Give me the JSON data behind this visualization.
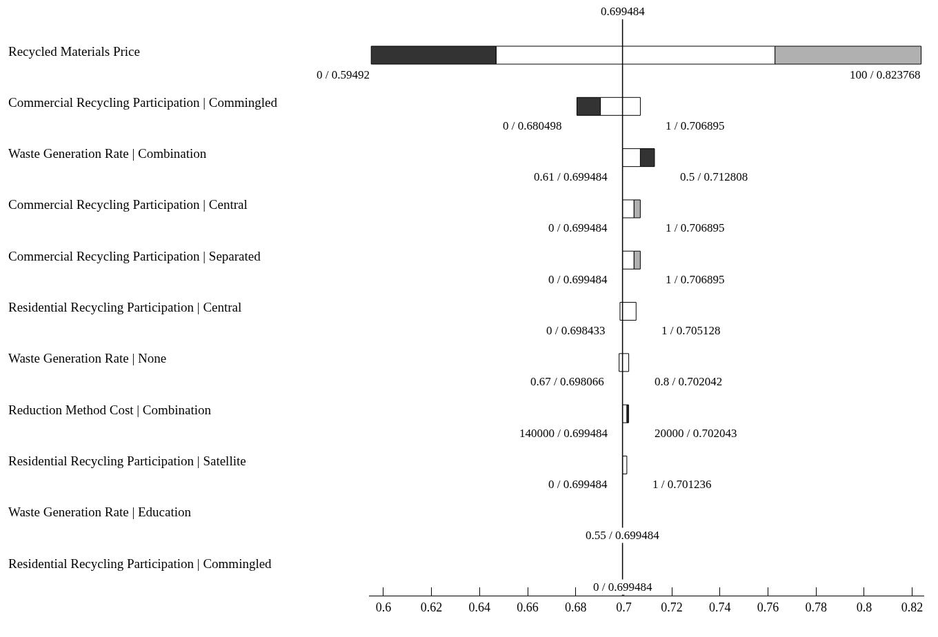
{
  "chart_data": {
    "type": "bar",
    "orientation": "horizontal",
    "categories": [
      "Recycled Materials Price",
      "Commercial Recycling Participation | Commingled",
      "Waste Generation Rate | Combination",
      "Commercial Recycling Participation | Central",
      "Commercial Recycling Participation | Separated",
      "Residential Recycling Participation | Central",
      "Waste Generation Rate | None",
      "Reduction Method Cost | Combination",
      "Residential Recycling Participation | Satellite",
      "Waste Generation Rate | Education",
      "Residential Recycling Participation | Commingled"
    ],
    "series": [
      {
        "color": "#333333",
        "base": [
          0.59492,
          0.680498,
          0.70688,
          null,
          null,
          null,
          null,
          0.7013,
          null,
          null,
          null
        ],
        "values": [
          0.052,
          0.0098,
          0.0059,
          null,
          null,
          null,
          null,
          0.0007,
          null,
          null,
          null
        ]
      },
      {
        "color": "#ffffff",
        "base": [
          0.64692,
          0.6903,
          0.699484,
          0.699484,
          0.699484,
          0.698433,
          0.698066,
          0.699484,
          0.699484,
          null,
          null
        ],
        "values": [
          0.116,
          0.0166,
          0.0074,
          0.0048,
          0.0048,
          0.0067,
          0.004,
          0.0018,
          0.0018,
          null,
          null
        ]
      },
      {
        "color": "#b0b0b0",
        "base": [
          0.76292,
          null,
          null,
          0.704284,
          0.704284,
          null,
          null,
          null,
          null,
          null,
          null
        ],
        "values": [
          0.0608,
          null,
          null,
          0.0026,
          0.0026,
          null,
          null,
          null,
          null,
          null,
          null
        ]
      }
    ],
    "xlim": [
      0.594,
      0.825
    ],
    "xticks": [
      0.6,
      0.62,
      0.64,
      0.66,
      0.68,
      0.7,
      0.72,
      0.74,
      0.76,
      0.78,
      0.8,
      0.82
    ],
    "tick_labels": "x",
    "ref_lines": [
      {
        "axis": "x",
        "value": 0.699484,
        "label": "0.699484"
      }
    ],
    "annotations": [
      {
        "text": "0 / 0.59492",
        "x": 0.59492,
        "y": "Recycled Materials Price"
      },
      {
        "text": "100 / 0.823768",
        "x": 0.823768,
        "y": "Recycled Materials Price"
      },
      {
        "text": "0 / 0.680498",
        "x": 0.680498,
        "y": "Commercial Recycling Participation | Commingled"
      },
      {
        "text": "1 / 0.706895",
        "x": 0.706895,
        "y": "Commercial Recycling Participation | Commingled"
      },
      {
        "text": "0.61 / 0.699484",
        "x": 0.699484,
        "y": "Waste Generation Rate | Combination"
      },
      {
        "text": "0.5 / 0.712808",
        "x": 0.712808,
        "y": "Waste Generation Rate | Combination"
      },
      {
        "text": "0 / 0.699484",
        "x": 0.699484,
        "y": "Commercial Recycling Participation | Central"
      },
      {
        "text": "1 / 0.706895",
        "x": 0.706895,
        "y": "Commercial Recycling Participation | Central"
      },
      {
        "text": "0 / 0.699484",
        "x": 0.699484,
        "y": "Commercial Recycling Participation | Separated"
      },
      {
        "text": "1 / 0.706895",
        "x": 0.706895,
        "y": "Commercial Recycling Participation | Separated"
      },
      {
        "text": "0 / 0.698433",
        "x": 0.698433,
        "y": "Residential Recycling Participation | Central"
      },
      {
        "text": "1 / 0.705128",
        "x": 0.705128,
        "y": "Residential Recycling Participation | Central"
      },
      {
        "text": "0.67 / 0.698066",
        "x": 0.698066,
        "y": "Waste Generation Rate | None"
      },
      {
        "text": "0.8 / 0.702042",
        "x": 0.702042,
        "y": "Waste Generation Rate | None"
      },
      {
        "text": "140000 / 0.699484",
        "x": 0.699484,
        "y": "Reduction Method Cost | Combination"
      },
      {
        "text": "20000 / 0.702043",
        "x": 0.702043,
        "y": "Reduction Method Cost | Combination"
      },
      {
        "text": "0 / 0.699484",
        "x": 0.699484,
        "y": "Residential Recycling Participation | Satellite"
      },
      {
        "text": "1 / 0.701236",
        "x": 0.701236,
        "y": "Residential Recycling Participation | Satellite"
      },
      {
        "text": "0.55 / 0.699484",
        "x": 0.699484,
        "y": "Waste Generation Rate | Education"
      },
      {
        "text": "0 / 0.699484",
        "x": 0.699484,
        "y": "Residential Recycling Participation | Commingled"
      }
    ]
  }
}
